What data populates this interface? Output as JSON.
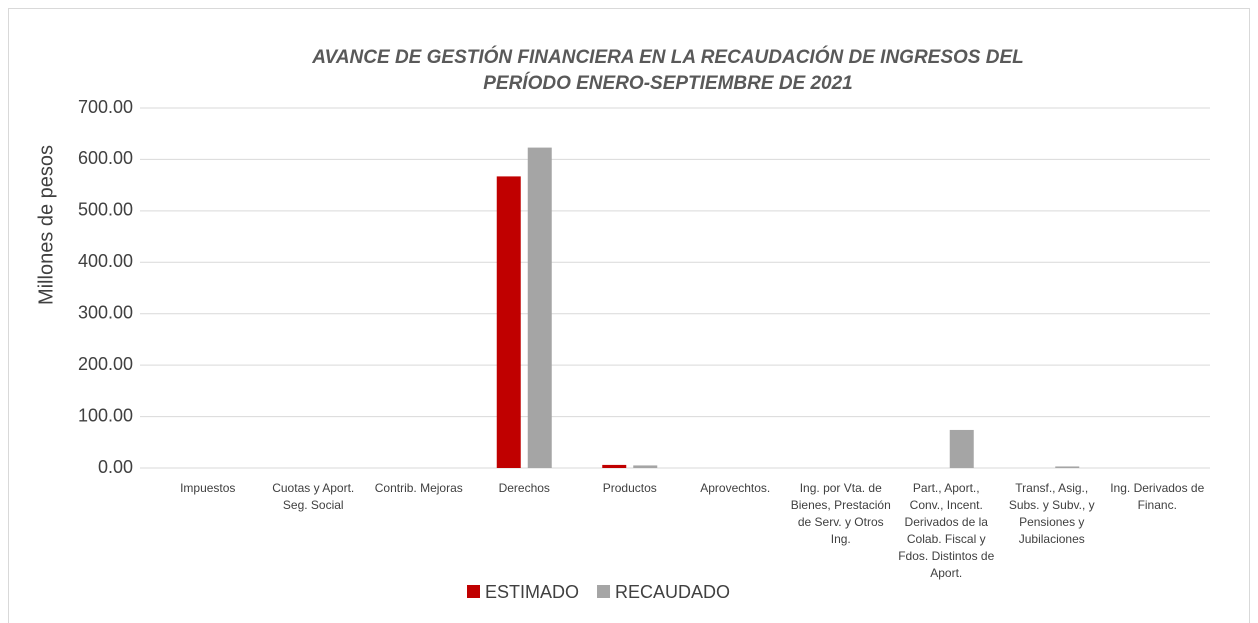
{
  "chart_data": {
    "type": "bar",
    "title": [
      "AVANCE DE GESTIÓN FINANCIERA EN LA RECAUDACIÓN DE INGRESOS DEL",
      "PERÍODO ENERO-SEPTIEMBRE DE 2021"
    ],
    "y_label": "Millones de pesos",
    "categories": [
      "Impuestos",
      "Cuotas y Aport. Seg. Social",
      "Contrib. Mejoras",
      "Derechos",
      "Productos",
      "Aprovechtos.",
      "Ing. por Vta. de Bienes, Prestación de Serv. y Otros Ing.",
      "Part., Aport., Conv., Incent. Derivados de la Colab. Fiscal y Fdos. Distintos de Aport.",
      "Transf., Asig., Subs. y Subv., y Pensiones y Jubilaciones",
      "Ing. Derivados de Financ."
    ],
    "series": [
      {
        "name": "ESTIMADO",
        "color": "#c00000",
        "values": [
          0,
          0,
          0,
          567,
          6,
          0,
          0,
          0,
          0,
          0
        ]
      },
      {
        "name": "RECAUDADO",
        "color": "#a5a5a5",
        "values": [
          0,
          0,
          0,
          623,
          5,
          0,
          0,
          74,
          3,
          0
        ]
      }
    ],
    "ylim": [
      0,
      700
    ],
    "yticks": [
      {
        "value": 0,
        "label": "0.00"
      },
      {
        "value": 100,
        "label": "100.00"
      },
      {
        "value": 200,
        "label": "200.00"
      },
      {
        "value": 300,
        "label": "300.00"
      },
      {
        "value": 400,
        "label": "400.00"
      },
      {
        "value": 500,
        "label": "500.00"
      },
      {
        "value": 600,
        "label": "600.00"
      },
      {
        "value": 700,
        "label": "700.00"
      }
    ],
    "grid": true,
    "legend": "bottom"
  }
}
